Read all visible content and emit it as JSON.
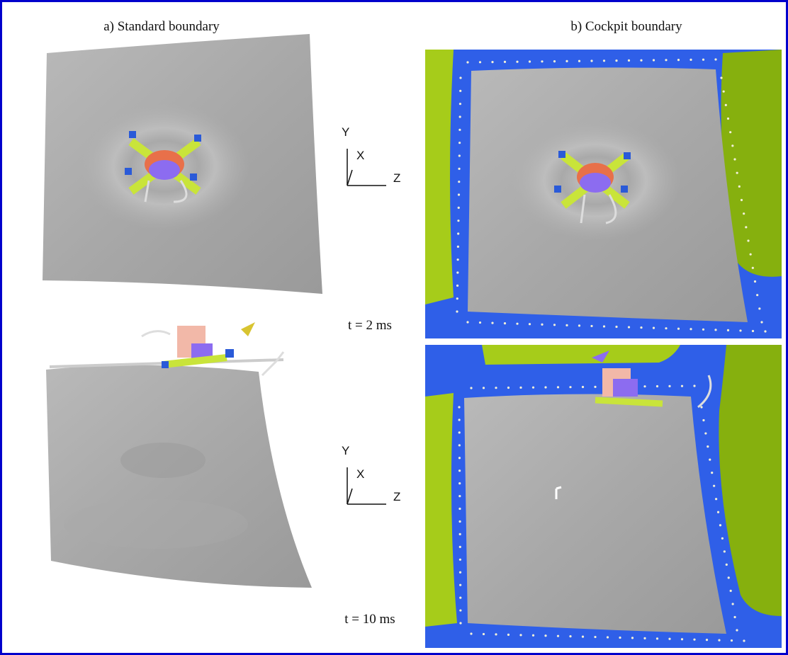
{
  "panels": {
    "a": {
      "title": "a) Standard boundary"
    },
    "b": {
      "title": "b) Cockpit boundary"
    }
  },
  "axes": [
    {
      "y": "Y",
      "x": "X",
      "z": "Z"
    },
    {
      "y": "Y",
      "x": "X",
      "z": "Z"
    }
  ],
  "times": [
    "t = 2 ms",
    "t = 10 ms"
  ]
}
